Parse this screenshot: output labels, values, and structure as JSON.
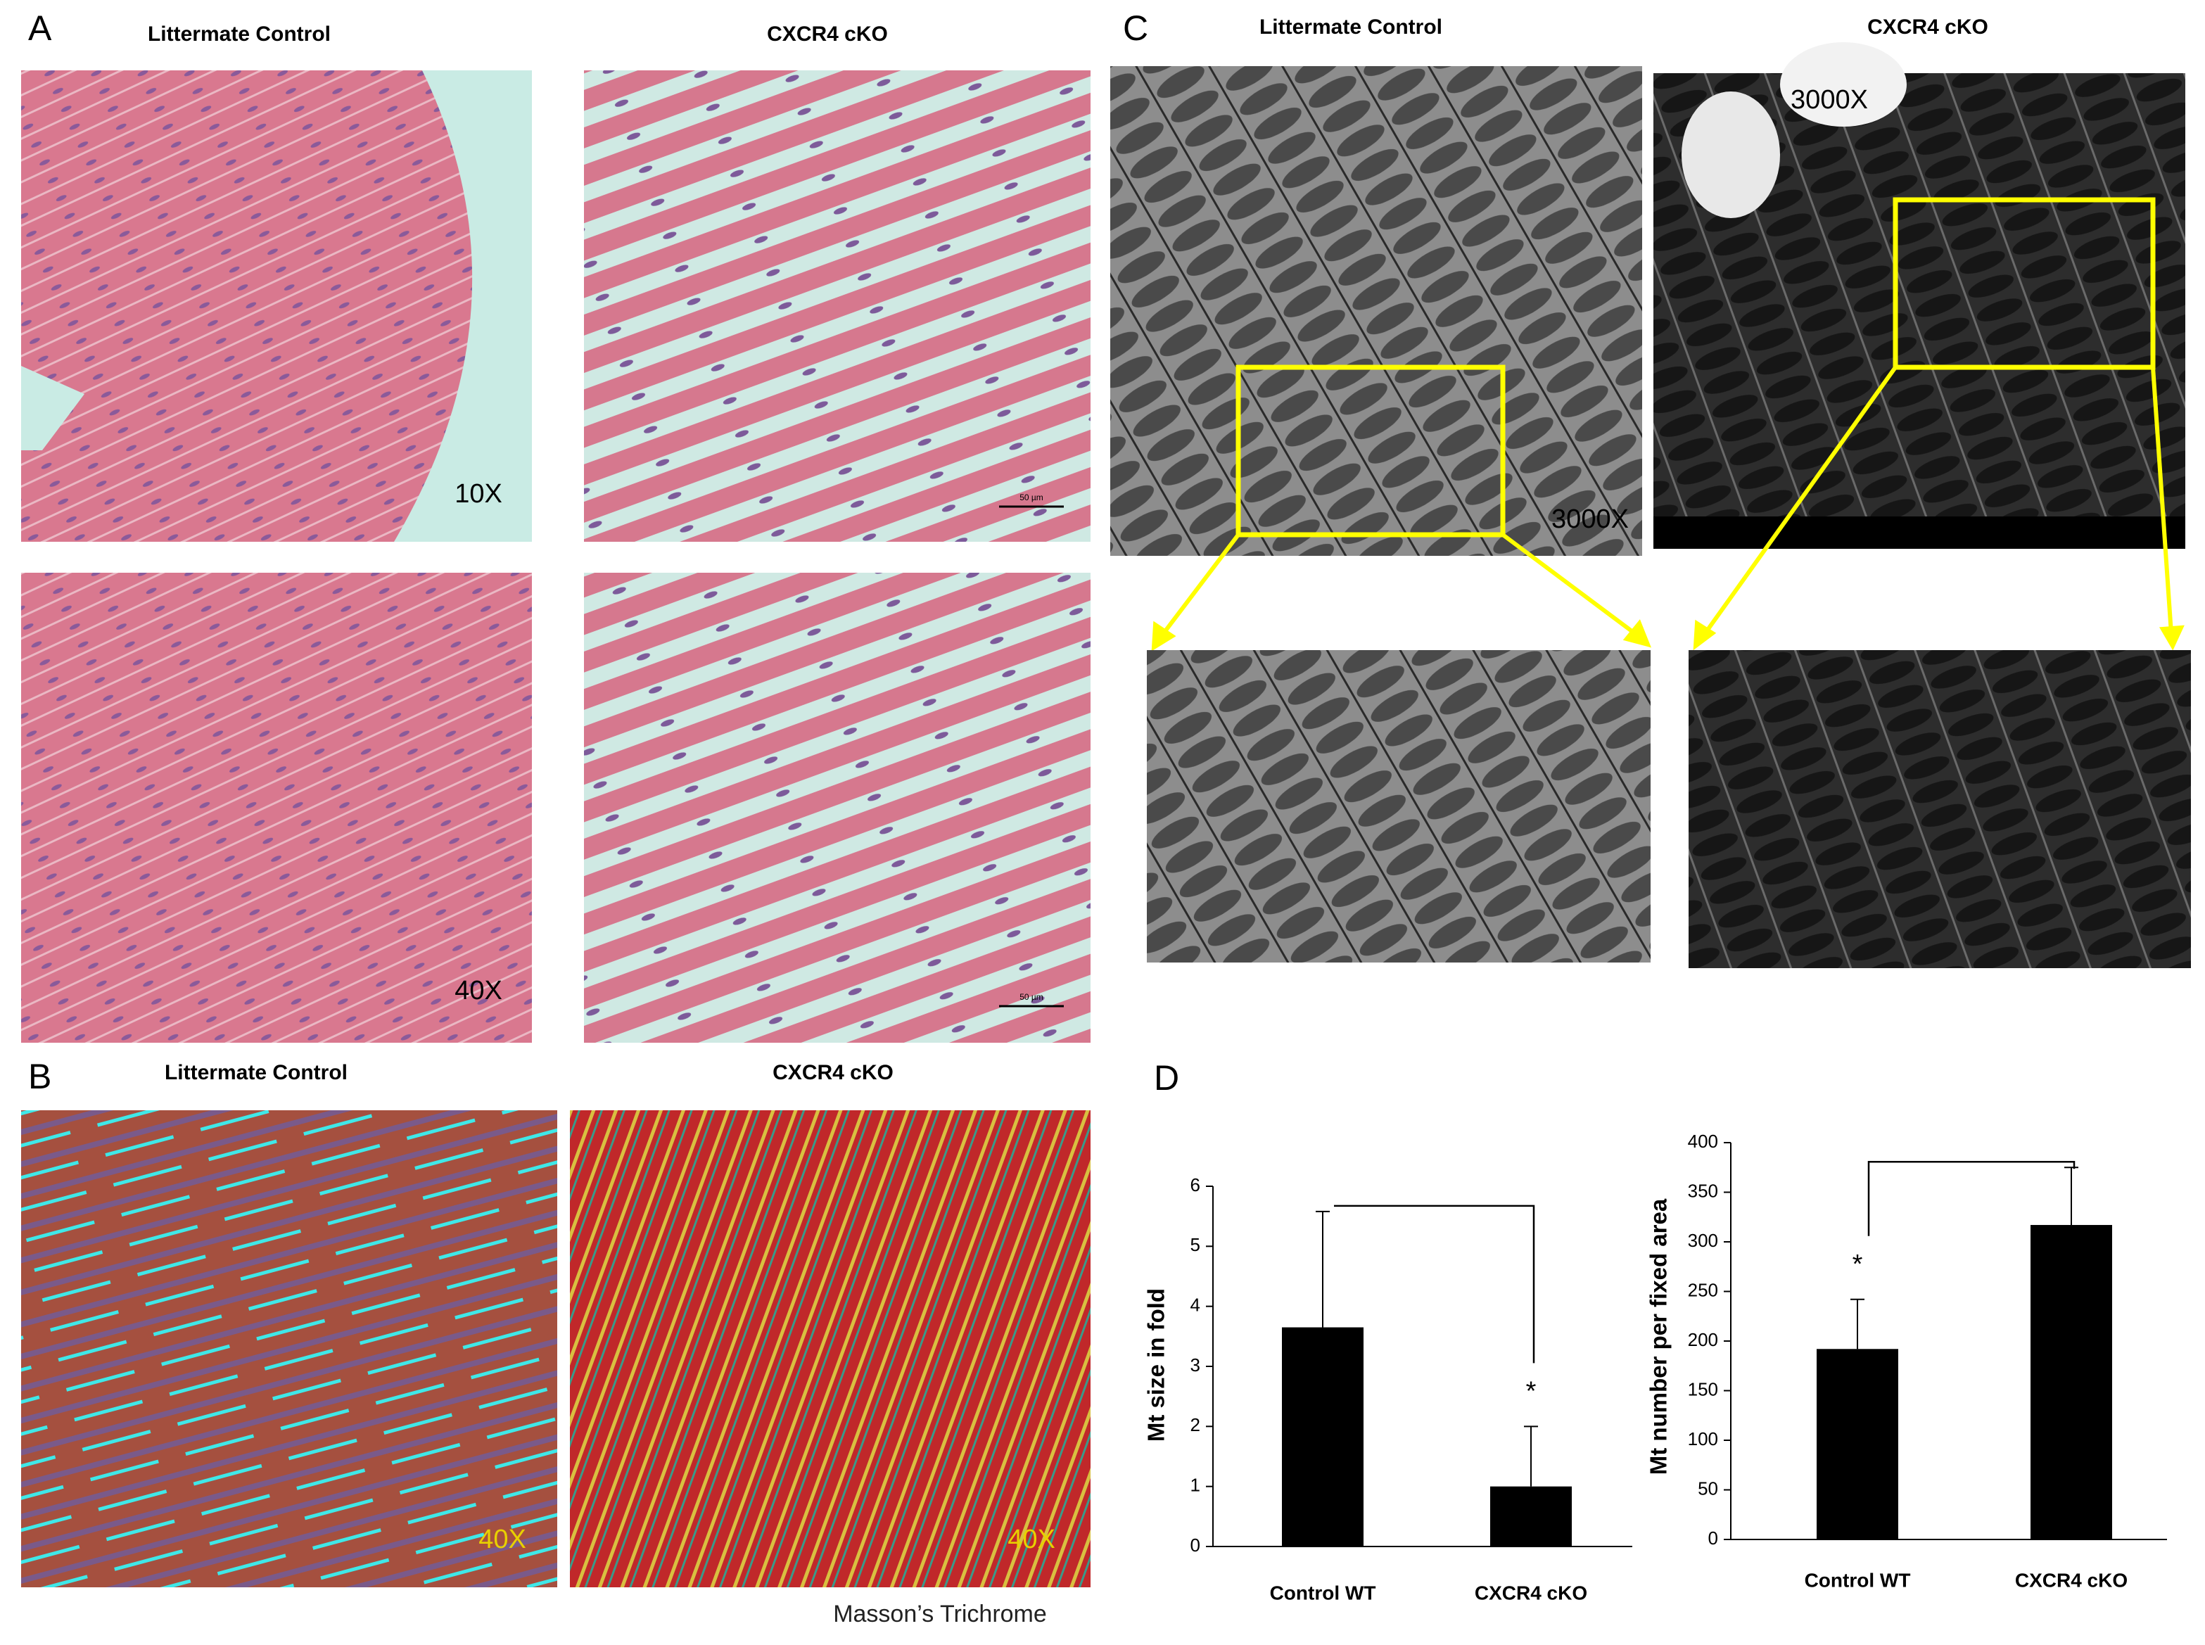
{
  "panels": {
    "A": {
      "label": "A",
      "titles": [
        "Littermate Control",
        "CXCR4 cKO"
      ],
      "magnifications": [
        "10X",
        "40X"
      ],
      "scale_bars": [
        "50 µm",
        "50 µm"
      ]
    },
    "B": {
      "label": "B",
      "titles": [
        "Littermate Control",
        "CXCR4 cKO"
      ],
      "magnifications": [
        "40X",
        "40X"
      ],
      "stain": "Masson’s Trichrome"
    },
    "C": {
      "label": "C",
      "titles": [
        "Littermate Control",
        "CXCR4 cKO"
      ],
      "magnifications": [
        "3000X",
        "3000X"
      ]
    },
    "D": {
      "label": "D"
    }
  },
  "chart_data": [
    {
      "type": "bar",
      "ylabel": "Mt size in fold",
      "categories": [
        "Control WT",
        "CXCR4 cKO"
      ],
      "values": [
        3.65,
        1.0
      ],
      "errors": [
        1.93,
        1.0
      ],
      "color": "#000000",
      "ylim": [
        0,
        6
      ],
      "yticks": [
        0,
        1,
        2,
        3,
        4,
        5,
        6
      ],
      "annotation": "*"
    },
    {
      "type": "bar",
      "ylabel": "Mt number per fixed area",
      "categories": [
        "Control WT",
        "CXCR4 cKO"
      ],
      "values": [
        192,
        317
      ],
      "errors": [
        50,
        58
      ],
      "color": "#000000",
      "ylim": [
        0,
        400
      ],
      "yticks": [
        0,
        50,
        100,
        150,
        200,
        250,
        300,
        350,
        400
      ],
      "annotation": "*"
    }
  ]
}
